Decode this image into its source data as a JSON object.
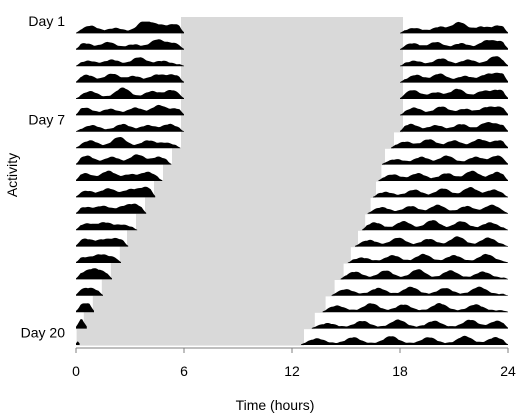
{
  "chart_data": {
    "type": "area",
    "title": "",
    "xlabel": "Time (hours)",
    "ylabel": "Activity",
    "xlim": [
      0,
      24
    ],
    "xticks": [
      "0",
      "6",
      "12",
      "18",
      "24"
    ],
    "row_labels": [
      {
        "day": 1,
        "text": "Day 1"
      },
      {
        "day": 7,
        "text": "Day 7"
      },
      {
        "day": 20,
        "text": "Day 20"
      }
    ],
    "days": 20,
    "colors": {
      "shade": "#d9d9d9",
      "activity": "#000000",
      "axis": "#7f7f7f"
    },
    "dark_period_hours": [
      {
        "day": 1,
        "start": 6,
        "end": 18
      },
      {
        "day": 2,
        "start": 6,
        "end": 18
      },
      {
        "day": 3,
        "start": 6,
        "end": 18
      },
      {
        "day": 4,
        "start": 6,
        "end": 18
      },
      {
        "day": 5,
        "start": 6,
        "end": 18
      },
      {
        "day": 6,
        "start": 6,
        "end": 18
      },
      {
        "day": 7,
        "start": 6,
        "end": 18
      },
      {
        "day": 8,
        "start": 6,
        "end": 17.5
      },
      {
        "day": 9,
        "start": 5.5,
        "end": 17
      },
      {
        "day": 10,
        "start": 5.0,
        "end": 16.8
      },
      {
        "day": 11,
        "start": 4.5,
        "end": 16.5
      },
      {
        "day": 12,
        "start": 4.0,
        "end": 16.2
      },
      {
        "day": 13,
        "start": 3.5,
        "end": 15.9
      },
      {
        "day": 14,
        "start": 3.0,
        "end": 15.5
      },
      {
        "day": 15,
        "start": 2.6,
        "end": 15.1
      },
      {
        "day": 16,
        "start": 2.1,
        "end": 14.7
      },
      {
        "day": 17,
        "start": 1.6,
        "end": 14.2
      },
      {
        "day": 18,
        "start": 1.1,
        "end": 13.7
      },
      {
        "day": 19,
        "start": 0.6,
        "end": 13.1
      },
      {
        "day": 20,
        "start": 0.2,
        "end": 12.5
      }
    ],
    "activity_bouts": [
      {
        "day": 1,
        "start": 0,
        "end": 6,
        "peaks": [
          [
            0.8,
            0.5
          ],
          [
            2.2,
            0.3
          ],
          [
            3.8,
            0.9
          ],
          [
            4.6,
            0.5
          ],
          [
            5.5,
            0.6
          ]
        ]
      },
      {
        "day": 2,
        "start": 0,
        "end": 6,
        "peaks": [
          [
            0.5,
            0.4
          ],
          [
            1.8,
            0.5
          ],
          [
            3.2,
            0.3
          ],
          [
            4.5,
            0.7
          ],
          [
            5.4,
            0.4
          ]
        ]
      },
      {
        "day": 3,
        "start": 0,
        "end": 6,
        "peaks": [
          [
            0.7,
            0.3
          ],
          [
            2.0,
            0.4
          ],
          [
            3.5,
            0.6
          ],
          [
            4.8,
            0.3
          ]
        ]
      },
      {
        "day": 4,
        "start": 0,
        "end": 6,
        "peaks": [
          [
            0.6,
            0.5
          ],
          [
            2.0,
            0.6
          ],
          [
            3.2,
            0.4
          ],
          [
            4.5,
            0.5
          ],
          [
            5.4,
            0.5
          ]
        ]
      },
      {
        "day": 5,
        "start": 0,
        "end": 6,
        "peaks": [
          [
            0.8,
            0.5
          ],
          [
            2.6,
            0.8
          ],
          [
            4.2,
            0.5
          ],
          [
            5.3,
            0.6
          ]
        ]
      },
      {
        "day": 6,
        "start": 0,
        "end": 6,
        "peaks": [
          [
            0.5,
            0.5
          ],
          [
            1.9,
            0.4
          ],
          [
            3.3,
            0.5
          ],
          [
            4.6,
            0.7
          ],
          [
            5.6,
            0.4
          ]
        ]
      },
      {
        "day": 7,
        "start": 0,
        "end": 6,
        "peaks": [
          [
            0.9,
            0.4
          ],
          [
            2.6,
            0.5
          ],
          [
            4.0,
            0.4
          ],
          [
            5.2,
            0.5
          ]
        ]
      },
      {
        "day": 8,
        "start": 0,
        "end": 5.8,
        "peaks": [
          [
            0.8,
            0.5
          ],
          [
            2.4,
            0.8
          ],
          [
            4.0,
            0.5
          ],
          [
            5.0,
            0.3
          ]
        ]
      },
      {
        "day": 9,
        "start": 0,
        "end": 5.3,
        "peaks": [
          [
            0.6,
            0.6
          ],
          [
            2.0,
            0.5
          ],
          [
            3.4,
            0.7
          ],
          [
            4.6,
            0.5
          ]
        ]
      },
      {
        "day": 10,
        "start": 0,
        "end": 4.8,
        "peaks": [
          [
            0.5,
            0.5
          ],
          [
            1.8,
            0.7
          ],
          [
            3.0,
            0.4
          ],
          [
            4.0,
            0.6
          ]
        ]
      },
      {
        "day": 11,
        "start": 0,
        "end": 4.4,
        "peaks": [
          [
            0.6,
            0.4
          ],
          [
            1.8,
            0.6
          ],
          [
            3.0,
            0.5
          ],
          [
            3.9,
            0.7
          ]
        ]
      },
      {
        "day": 12,
        "start": 0,
        "end": 3.9,
        "peaks": [
          [
            0.5,
            0.4
          ],
          [
            1.5,
            0.5
          ],
          [
            2.6,
            0.4
          ],
          [
            3.3,
            0.6
          ]
        ]
      },
      {
        "day": 13,
        "start": 0,
        "end": 3.4,
        "peaks": [
          [
            0.6,
            0.4
          ],
          [
            1.6,
            0.5
          ],
          [
            2.6,
            0.3
          ]
        ]
      },
      {
        "day": 14,
        "start": 0,
        "end": 2.9,
        "peaks": [
          [
            0.5,
            0.5
          ],
          [
            1.5,
            0.4
          ],
          [
            2.3,
            0.5
          ]
        ]
      },
      {
        "day": 15,
        "start": 0,
        "end": 2.5,
        "peaks": [
          [
            0.4,
            0.3
          ],
          [
            1.3,
            0.5
          ],
          [
            2.0,
            0.3
          ]
        ]
      },
      {
        "day": 16,
        "start": 0,
        "end": 2.0,
        "peaks": [
          [
            0.4,
            0.3
          ],
          [
            1.0,
            0.6
          ],
          [
            1.6,
            0.3
          ]
        ]
      },
      {
        "day": 17,
        "start": 0,
        "end": 1.5,
        "peaks": [
          [
            0.3,
            0.3
          ],
          [
            0.9,
            0.4
          ]
        ]
      },
      {
        "day": 18,
        "start": 0,
        "end": 1.0,
        "peaks": [
          [
            0.4,
            0.4
          ],
          [
            0.8,
            0.3
          ]
        ]
      },
      {
        "day": 19,
        "start": 0,
        "end": 0.6,
        "peaks": [
          [
            0.2,
            0.4
          ],
          [
            0.5,
            0.3
          ]
        ]
      },
      {
        "day": 20,
        "start": 0,
        "end": 0.2,
        "peaks": [
          [
            0.1,
            0.4
          ]
        ]
      },
      {
        "day": 1,
        "start": 18,
        "end": 24,
        "peaks": [
          [
            18.8,
            0.3
          ],
          [
            20.2,
            0.4
          ],
          [
            21.3,
            0.8
          ],
          [
            22.5,
            0.4
          ],
          [
            23.5,
            0.5
          ]
        ]
      },
      {
        "day": 2,
        "start": 18,
        "end": 24,
        "peaks": [
          [
            18.7,
            0.4
          ],
          [
            20.0,
            0.5
          ],
          [
            21.4,
            0.4
          ],
          [
            22.8,
            0.6
          ],
          [
            23.6,
            0.5
          ]
        ]
      },
      {
        "day": 3,
        "start": 18,
        "end": 24,
        "peaks": [
          [
            18.8,
            0.3
          ],
          [
            20.3,
            0.5
          ],
          [
            21.8,
            0.4
          ],
          [
            23.3,
            0.7
          ]
        ]
      },
      {
        "day": 4,
        "start": 18,
        "end": 24,
        "peaks": [
          [
            18.9,
            0.5
          ],
          [
            20.2,
            0.6
          ],
          [
            21.6,
            0.4
          ],
          [
            22.8,
            0.5
          ],
          [
            23.6,
            0.6
          ]
        ]
      },
      {
        "day": 5,
        "start": 18,
        "end": 24,
        "peaks": [
          [
            18.7,
            0.6
          ],
          [
            20.0,
            0.4
          ],
          [
            21.2,
            0.7
          ],
          [
            22.6,
            0.5
          ],
          [
            23.5,
            0.6
          ]
        ]
      },
      {
        "day": 6,
        "start": 18,
        "end": 24,
        "peaks": [
          [
            18.8,
            0.5
          ],
          [
            20.3,
            0.6
          ],
          [
            21.6,
            0.4
          ],
          [
            22.8,
            0.5
          ],
          [
            23.6,
            0.5
          ]
        ]
      },
      {
        "day": 7,
        "start": 18,
        "end": 24,
        "peaks": [
          [
            18.6,
            0.5
          ],
          [
            20.0,
            0.4
          ],
          [
            21.4,
            0.5
          ],
          [
            22.8,
            0.6
          ],
          [
            23.6,
            0.4
          ]
        ]
      },
      {
        "day": 8,
        "start": 17.5,
        "end": 24,
        "peaks": [
          [
            18.3,
            0.4
          ],
          [
            19.6,
            0.6
          ],
          [
            21.0,
            0.5
          ],
          [
            22.4,
            0.6
          ],
          [
            23.5,
            0.5
          ]
        ]
      },
      {
        "day": 9,
        "start": 17.0,
        "end": 24,
        "peaks": [
          [
            17.8,
            0.3
          ],
          [
            19.2,
            0.5
          ],
          [
            20.6,
            0.6
          ],
          [
            22.2,
            0.5
          ],
          [
            23.4,
            0.6
          ]
        ]
      },
      {
        "day": 10,
        "start": 16.8,
        "end": 24,
        "peaks": [
          [
            17.6,
            0.4
          ],
          [
            19.0,
            0.5
          ],
          [
            20.6,
            0.5
          ],
          [
            22.0,
            0.7
          ],
          [
            23.4,
            0.6
          ]
        ]
      },
      {
        "day": 11,
        "start": 16.5,
        "end": 24,
        "peaks": [
          [
            17.2,
            0.3
          ],
          [
            18.8,
            0.5
          ],
          [
            20.4,
            0.6
          ],
          [
            21.9,
            0.7
          ],
          [
            23.2,
            0.5
          ]
        ]
      },
      {
        "day": 12,
        "start": 16.2,
        "end": 24,
        "peaks": [
          [
            17.0,
            0.4
          ],
          [
            18.6,
            0.5
          ],
          [
            20.1,
            0.6
          ],
          [
            21.7,
            0.5
          ],
          [
            23.1,
            0.6
          ]
        ]
      },
      {
        "day": 13,
        "start": 15.9,
        "end": 24,
        "peaks": [
          [
            16.6,
            0.5
          ],
          [
            18.2,
            0.6
          ],
          [
            19.8,
            0.7
          ],
          [
            21.4,
            0.6
          ],
          [
            23.0,
            0.5
          ]
        ]
      },
      {
        "day": 14,
        "start": 15.5,
        "end": 24,
        "peaks": [
          [
            16.3,
            0.4
          ],
          [
            17.9,
            0.6
          ],
          [
            19.6,
            0.5
          ],
          [
            21.2,
            0.7
          ],
          [
            22.9,
            0.6
          ]
        ]
      },
      {
        "day": 15,
        "start": 15.1,
        "end": 24,
        "peaks": [
          [
            15.9,
            0.3
          ],
          [
            17.6,
            0.5
          ],
          [
            19.3,
            0.6
          ],
          [
            21.0,
            0.5
          ],
          [
            22.8,
            0.6
          ]
        ]
      },
      {
        "day": 16,
        "start": 14.7,
        "end": 24,
        "peaks": [
          [
            15.5,
            0.5
          ],
          [
            17.2,
            0.6
          ],
          [
            19.0,
            0.7
          ],
          [
            20.8,
            0.6
          ],
          [
            22.6,
            0.5
          ]
        ]
      },
      {
        "day": 17,
        "start": 14.2,
        "end": 24,
        "peaks": [
          [
            15.0,
            0.4
          ],
          [
            16.8,
            0.5
          ],
          [
            18.6,
            0.6
          ],
          [
            20.5,
            0.5
          ],
          [
            22.4,
            0.6
          ]
        ]
      },
      {
        "day": 18,
        "start": 13.7,
        "end": 24,
        "peaks": [
          [
            14.5,
            0.4
          ],
          [
            16.4,
            0.6
          ],
          [
            18.2,
            0.5
          ],
          [
            20.2,
            0.6
          ],
          [
            22.2,
            0.5
          ]
        ]
      },
      {
        "day": 19,
        "start": 13.1,
        "end": 24,
        "peaks": [
          [
            14.0,
            0.3
          ],
          [
            15.9,
            0.5
          ],
          [
            17.9,
            0.6
          ],
          [
            19.9,
            0.5
          ],
          [
            21.9,
            0.6
          ],
          [
            23.4,
            0.5
          ]
        ]
      },
      {
        "day": 20,
        "start": 12.5,
        "end": 24,
        "peaks": [
          [
            13.4,
            0.4
          ],
          [
            15.4,
            0.5
          ],
          [
            17.5,
            0.6
          ],
          [
            19.6,
            0.5
          ],
          [
            21.6,
            0.6
          ],
          [
            23.3,
            0.5
          ]
        ]
      }
    ]
  }
}
